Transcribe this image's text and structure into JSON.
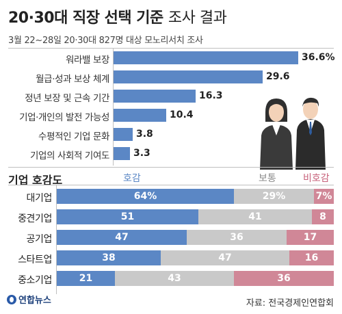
{
  "title": {
    "bold": "20·30대 직장 선택 기준",
    "light": "조사 결과"
  },
  "subtitle": "3월 22~28일 20·30대 827명 대상 모노리서치 조사",
  "chart_data": [
    {
      "type": "bar",
      "orientation": "horizontal",
      "unit": "%",
      "categories": [
        "워라밸 보장",
        "월급·성과 보상 체계",
        "정년 보장 및 근속 기간",
        "기업·개인의 발전 가능성",
        "수평적인 기업 문화",
        "기업의 사회적 기여도"
      ],
      "values": [
        36.6,
        29.6,
        16.3,
        10.4,
        3.8,
        3.3
      ],
      "value_labels": [
        "36.6%",
        "29.6",
        "16.3",
        "10.4",
        "3.8",
        "3.3"
      ],
      "color": "#5b87c5"
    },
    {
      "type": "bar",
      "orientation": "horizontal",
      "stacked": true,
      "title": "기업 호감도",
      "categories": [
        "대기업",
        "중견기업",
        "공기업",
        "스타트업",
        "중소기업"
      ],
      "series": [
        {
          "name": "호감",
          "color": "#5b87c5",
          "values": [
            64,
            51,
            47,
            38,
            21
          ],
          "labels": [
            "64%",
            "51",
            "47",
            "38",
            "21"
          ]
        },
        {
          "name": "보통",
          "color": "#c9c9c9",
          "values": [
            29,
            41,
            36,
            47,
            43
          ],
          "labels": [
            "29%",
            "41",
            "36",
            "47",
            "43"
          ]
        },
        {
          "name": "비호감",
          "color": "#d08797",
          "values": [
            7,
            8,
            17,
            16,
            36
          ],
          "labels": [
            "7%",
            "8",
            "17",
            "16",
            "36"
          ]
        }
      ]
    }
  ],
  "source": "자료: 전국경제인연합회",
  "logo": "연합뉴스",
  "colors": {
    "positive": "#5b87c5",
    "neutral": "#c9c9c9",
    "negative": "#d08797",
    "neutral_header": "#8c8c8c",
    "negative_header": "#c7617a"
  }
}
